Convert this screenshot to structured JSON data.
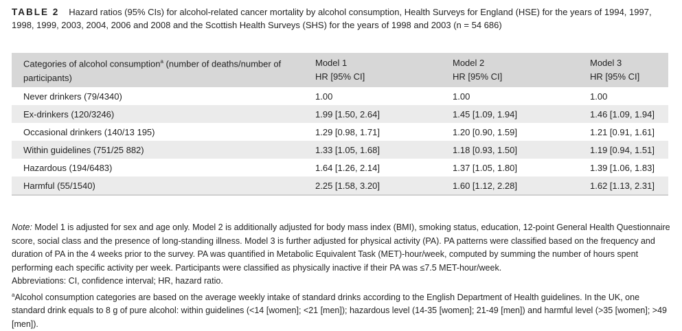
{
  "caption": {
    "label": "TABLE 2",
    "text": "Hazard ratios (95% CIs) for alcohol-related cancer mortality by alcohol consumption, Health Surveys for England (HSE) for the years of 1994, 1997, 1998, 1999, 2003, 2004, 2006 and 2008 and the Scottish Health Surveys (SHS) for the years of 1998 and 2003 (n = 54 686)"
  },
  "table": {
    "headers": {
      "category_a": "Categories of alcohol consumption",
      "category_sup": "a",
      "category_b": " (number of deaths/number of participants)",
      "m1": "Model 1",
      "m2": "Model 2",
      "m3": "Model 3",
      "hr": "HR [95% CI]"
    },
    "rows": [
      {
        "category": "Never drinkers (79/4340)",
        "m1": "1.00",
        "m2": "1.00",
        "m3": "1.00"
      },
      {
        "category": "Ex-drinkers (120/3246)",
        "m1": "1.99 [1.50, 2.64]",
        "m2": "1.45 [1.09, 1.94]",
        "m3": "1.46 [1.09, 1.94]"
      },
      {
        "category": "Occasional drinkers (140/13 195)",
        "m1": "1.29 [0.98, 1.71]",
        "m2": "1.20 [0.90, 1.59]",
        "m3": "1.21 [0.91, 1.61]"
      },
      {
        "category": "Within guidelines (751/25 882)",
        "m1": "1.33 [1.05, 1.68]",
        "m2": "1.18 [0.93, 1.50]",
        "m3": "1.19 [0.94, 1.51]"
      },
      {
        "category": "Hazardous (194/6483)",
        "m1": "1.64 [1.26, 2.14]",
        "m2": "1.37 [1.05, 1.80]",
        "m3": "1.39 [1.06, 1.83]"
      },
      {
        "category": "Harmful (55/1540)",
        "m1": "2.25 [1.58, 3.20]",
        "m2": "1.60 [1.12, 2.28]",
        "m3": "1.62 [1.13, 2.31]"
      }
    ]
  },
  "notes": {
    "note_label": "Note:",
    "note_text": " Model 1 is adjusted for sex and age only. Model 2 is additionally adjusted for body mass index (BMI), smoking status, education, 12-point General Health Questionnaire score, social class and the presence of long-standing illness. Model 3 is further adjusted for physical activity (PA). PA patterns were classified based on the frequency and duration of PA in the 4 weeks prior to the survey. PA was quantified in Metabolic Equivalent Task (MET)-hour/week, computed by summing the number of hours spent performing each specific activity per week. Participants were classified as physically inactive if their PA was ≤7.5 MET-hour/week.",
    "abbreviations": "Abbreviations: CI, confidence interval; HR, hazard ratio.",
    "footnote_sup": "a",
    "footnote": "Alcohol consumption categories are based on the average weekly intake of standard drinks according to the English Department of Health guidelines. In the UK, one standard drink equals to 8 g of pure alcohol: within guidelines (<14 [women]; <21 [men]); hazardous level (14-35 [women]; 21-49 [men]) and harmful level (>35 [women]; >49 [men])."
  }
}
